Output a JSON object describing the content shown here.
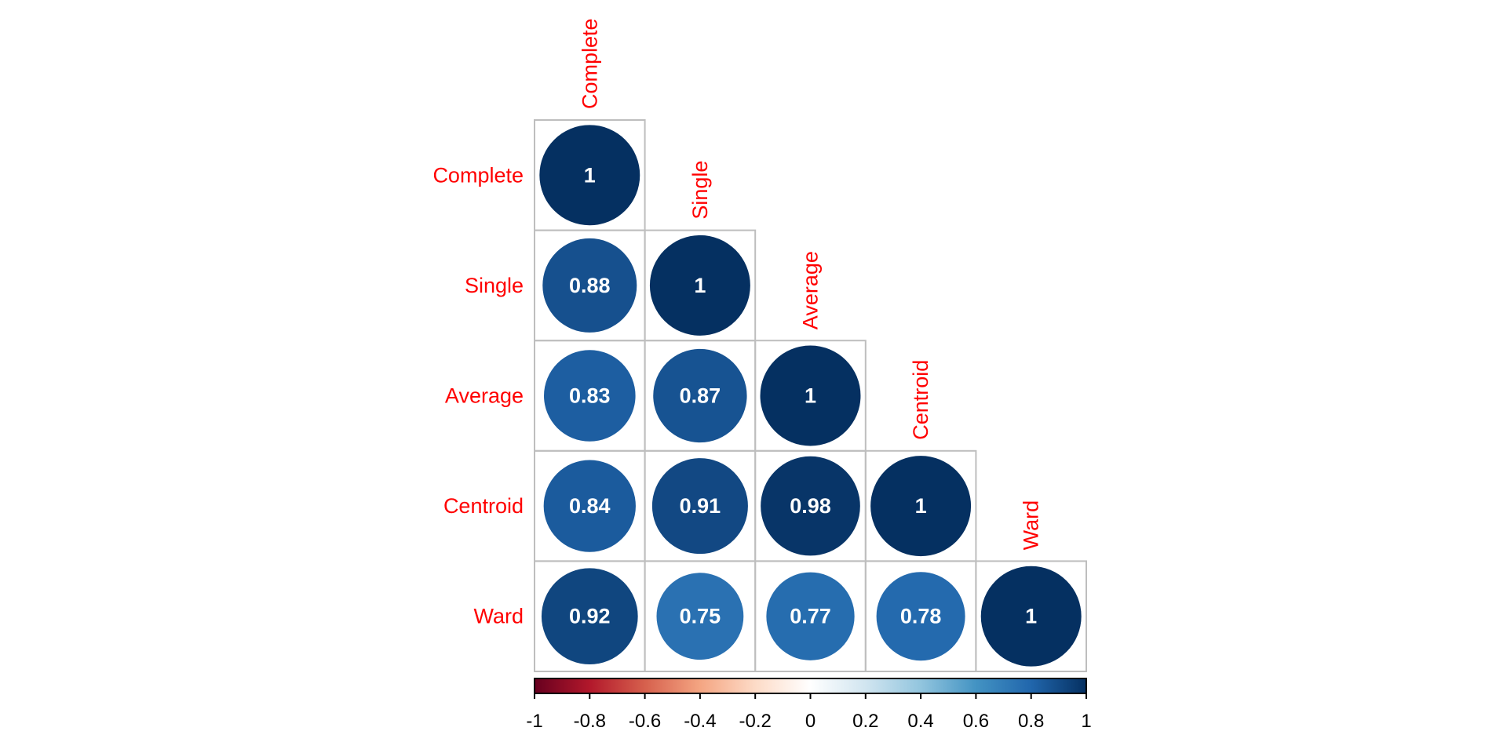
{
  "chart_data": {
    "type": "heatmap",
    "subtype": "corrplot-circle-lower",
    "variables": [
      "Complete",
      "Single",
      "Average",
      "Centroid",
      "Ward"
    ],
    "matrix": [
      [
        1,
        null,
        null,
        null,
        null
      ],
      [
        0.88,
        1,
        null,
        null,
        null
      ],
      [
        0.83,
        0.87,
        1,
        null,
        null
      ],
      [
        0.84,
        0.91,
        0.98,
        1,
        null
      ],
      [
        0.92,
        0.75,
        0.77,
        0.78,
        1
      ]
    ],
    "colorbar": {
      "range": [
        -1,
        1
      ],
      "ticks": [
        "-1",
        "-0.8",
        "-0.6",
        "-0.4",
        "-0.2",
        "0",
        "0.2",
        "0.4",
        "0.6",
        "0.8",
        "1"
      ],
      "palette": [
        "#67001F",
        "#B2182B",
        "#D6604D",
        "#F4A582",
        "#FDDBC7",
        "#FFFFFF",
        "#D1E5F0",
        "#92C5DE",
        "#4393C3",
        "#2166AC",
        "#053061"
      ]
    },
    "label_color": "#FF0000",
    "value_label_color": "#FFFFFF",
    "grid_color": "#BEBEBE"
  }
}
